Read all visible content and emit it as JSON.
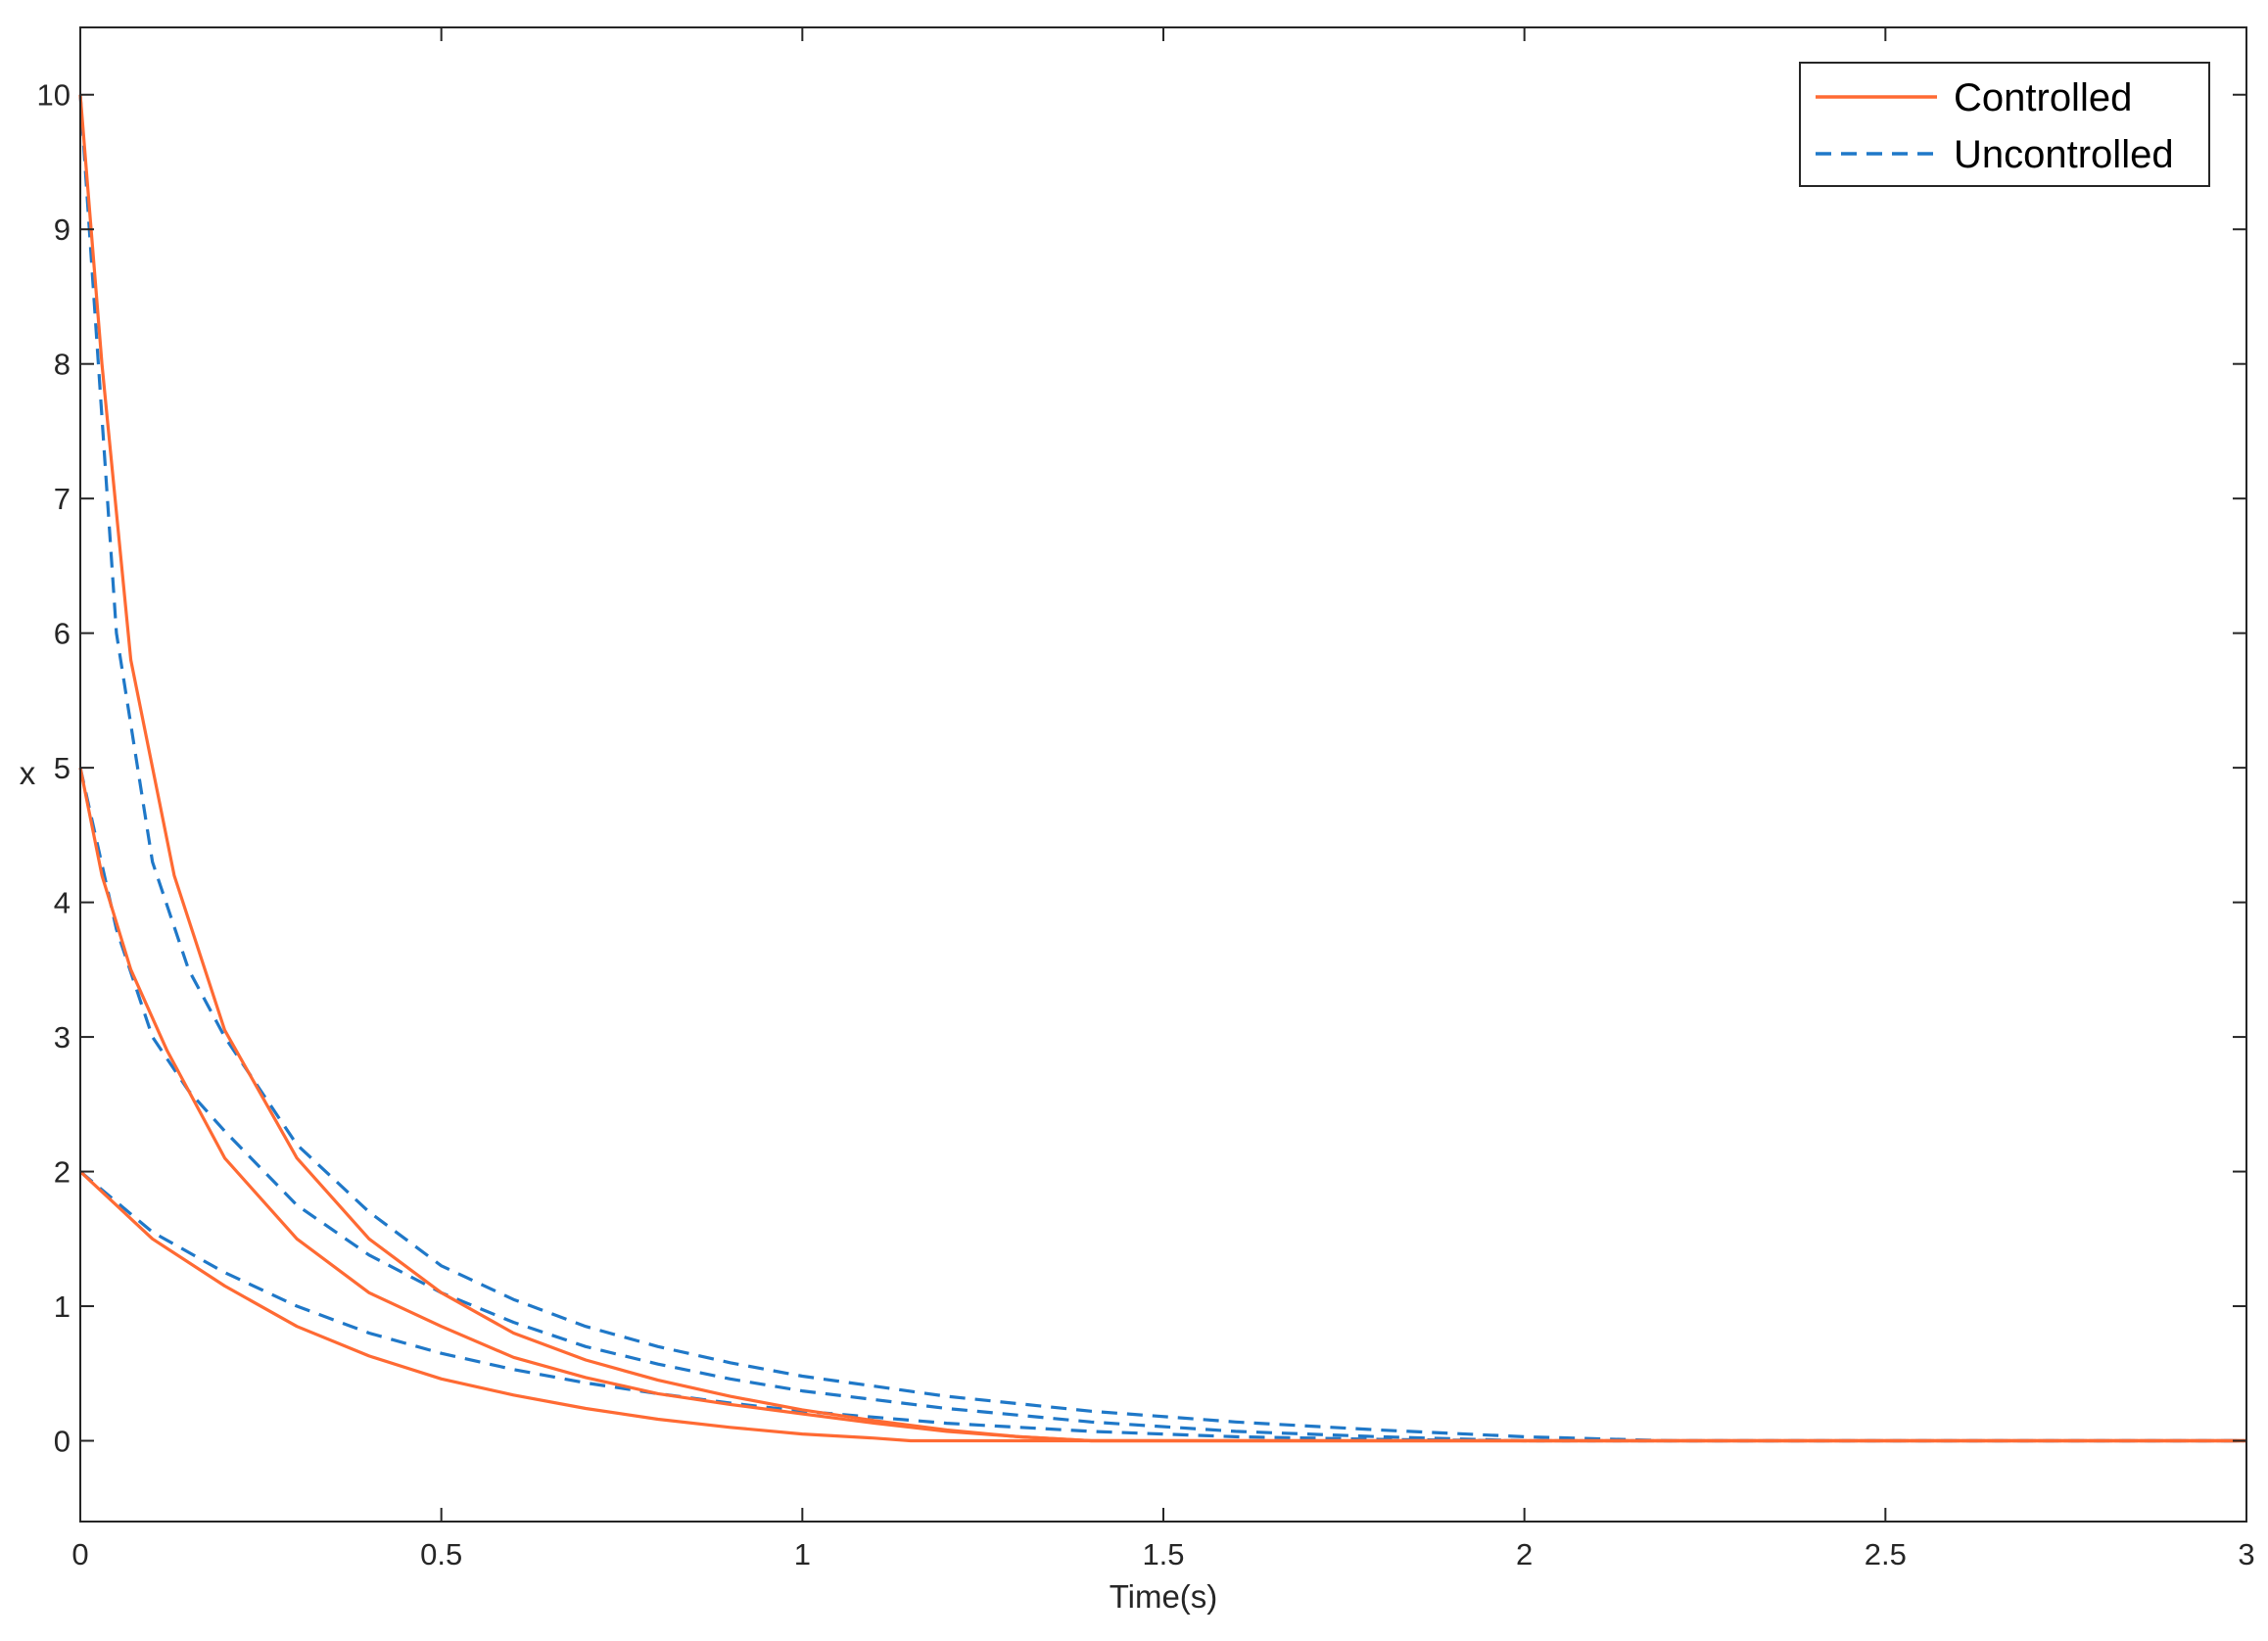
{
  "chart_data": {
    "type": "line",
    "xlabel": "Time(s)",
    "ylabel": "x",
    "xlim": [
      0,
      3
    ],
    "ylim": [
      -0.6,
      10.5
    ],
    "xticks": [
      0,
      0.5,
      1,
      1.5,
      2,
      2.5,
      3
    ],
    "xtick_labels": [
      "0",
      "0.5",
      "1",
      "1.5",
      "2",
      "2.5",
      "3"
    ],
    "yticks": [
      0,
      1,
      2,
      3,
      4,
      5,
      6,
      7,
      8,
      9,
      10
    ],
    "ytick_labels": [
      "0",
      "1",
      "2",
      "3",
      "4",
      "5",
      "6",
      "7",
      "8",
      "9",
      "10"
    ],
    "grid": false,
    "box": true,
    "legend_position": "top-right",
    "legend": [
      {
        "label": "Controlled",
        "color": "#FF6A33",
        "style": "solid"
      },
      {
        "label": "Uncontrolled",
        "color": "#1F78C8",
        "style": "dashed"
      }
    ],
    "series": [
      {
        "group": "Uncontrolled",
        "color": "#1F78C8",
        "style": "dashed",
        "x": [
          0,
          0.05,
          0.1,
          0.15,
          0.2,
          0.3,
          0.4,
          0.5,
          0.6,
          0.7,
          0.8,
          0.9,
          1.0,
          1.2,
          1.4,
          1.6,
          1.8,
          2.0,
          2.2,
          2.5,
          3.0
        ],
        "y": [
          10,
          6.0,
          4.3,
          3.5,
          3.0,
          2.2,
          1.7,
          1.3,
          1.05,
          0.85,
          0.7,
          0.58,
          0.48,
          0.33,
          0.22,
          0.14,
          0.08,
          0.03,
          0.0,
          0.0,
          0.0
        ]
      },
      {
        "group": "Uncontrolled",
        "color": "#1F78C8",
        "style": "dashed",
        "x": [
          0,
          0.05,
          0.1,
          0.15,
          0.2,
          0.3,
          0.4,
          0.5,
          0.6,
          0.7,
          0.8,
          0.9,
          1.0,
          1.2,
          1.4,
          1.6,
          1.8,
          2.0,
          2.2,
          2.5,
          3.0
        ],
        "y": [
          5,
          3.8,
          3.0,
          2.6,
          2.3,
          1.75,
          1.38,
          1.1,
          0.88,
          0.7,
          0.57,
          0.46,
          0.37,
          0.24,
          0.14,
          0.07,
          0.03,
          0.0,
          0.0,
          0.0,
          0.0
        ]
      },
      {
        "group": "Uncontrolled",
        "color": "#1F78C8",
        "style": "dashed",
        "x": [
          0,
          0.1,
          0.2,
          0.3,
          0.4,
          0.5,
          0.6,
          0.7,
          0.8,
          0.9,
          1.0,
          1.2,
          1.4,
          1.6,
          1.8,
          2.0,
          2.2,
          2.5,
          3.0
        ],
        "y": [
          2,
          1.55,
          1.25,
          1.0,
          0.8,
          0.65,
          0.53,
          0.43,
          0.35,
          0.28,
          0.22,
          0.13,
          0.07,
          0.03,
          0.01,
          0.0,
          0.0,
          0.0,
          0.0
        ]
      },
      {
        "group": "Controlled",
        "color": "#FF6A33",
        "style": "solid",
        "x": [
          0,
          0.03,
          0.07,
          0.13,
          0.2,
          0.3,
          0.4,
          0.5,
          0.6,
          0.7,
          0.8,
          0.9,
          1.0,
          1.1,
          1.2,
          1.3,
          1.4,
          1.6,
          2.0,
          2.5,
          3.0
        ],
        "y": [
          10,
          8.0,
          5.8,
          4.2,
          3.05,
          2.1,
          1.5,
          1.1,
          0.8,
          0.6,
          0.45,
          0.33,
          0.23,
          0.15,
          0.08,
          0.03,
          0.0,
          0.0,
          0.0,
          0.0,
          0.0
        ]
      },
      {
        "group": "Controlled",
        "color": "#FF6A33",
        "style": "solid",
        "x": [
          0,
          0.03,
          0.07,
          0.12,
          0.2,
          0.3,
          0.4,
          0.5,
          0.6,
          0.7,
          0.8,
          0.9,
          1.0,
          1.1,
          1.2,
          1.3,
          1.4,
          1.6,
          2.0,
          2.5,
          3.0
        ],
        "y": [
          5,
          4.2,
          3.5,
          2.9,
          2.1,
          1.5,
          1.1,
          0.85,
          0.62,
          0.47,
          0.35,
          0.27,
          0.2,
          0.13,
          0.07,
          0.03,
          0.0,
          0.0,
          0.0,
          0.0,
          0.0
        ]
      },
      {
        "group": "Controlled",
        "color": "#FF6A33",
        "style": "solid",
        "x": [
          0,
          0.1,
          0.2,
          0.3,
          0.4,
          0.5,
          0.6,
          0.7,
          0.8,
          0.9,
          1.0,
          1.1,
          1.15,
          1.2,
          1.5,
          2.0,
          2.5,
          3.0
        ],
        "y": [
          2,
          1.5,
          1.15,
          0.85,
          0.63,
          0.46,
          0.34,
          0.24,
          0.16,
          0.1,
          0.05,
          0.02,
          0.0,
          0.0,
          0.0,
          0.0,
          0.0,
          0.0
        ]
      }
    ]
  }
}
